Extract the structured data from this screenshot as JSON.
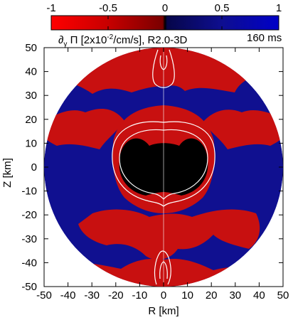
{
  "chart_data": {
    "type": "heatmap",
    "title": {
      "quantity": "∂",
      "quantity_sub": "γ",
      "symbol": " Π [2x10",
      "exponent": "-2",
      "units": "/cm/s], R2.0-3D"
    },
    "time_label": "160 ms",
    "xlabel": "R [km]",
    "ylabel": "Z [km]",
    "xlim": [
      -50,
      50
    ],
    "ylim": [
      -50,
      50
    ],
    "x_ticks": [
      "-50",
      "-40",
      "-30",
      "-20",
      "-10",
      "0",
      "10",
      "20",
      "30",
      "40",
      "50"
    ],
    "y_ticks": [
      "50",
      "40",
      "30",
      "20",
      "10",
      "0",
      "-10",
      "-20",
      "-30",
      "-40",
      "-50"
    ],
    "colorbar": {
      "range": [
        -1,
        1
      ],
      "ticks": [
        "-1",
        "-0.5",
        "0",
        "0.5",
        "1"
      ],
      "colors": [
        "#ff0000",
        "#c80000",
        "#7a0000",
        "#000000",
        "#0a0a6e",
        "#1010a8",
        "#0000c8"
      ]
    },
    "domain_radius_km": 50,
    "colors": {
      "positive_region": "#c81010",
      "negative_region": "#101090",
      "core": "#000000",
      "contour": "#ffffff"
    }
  }
}
